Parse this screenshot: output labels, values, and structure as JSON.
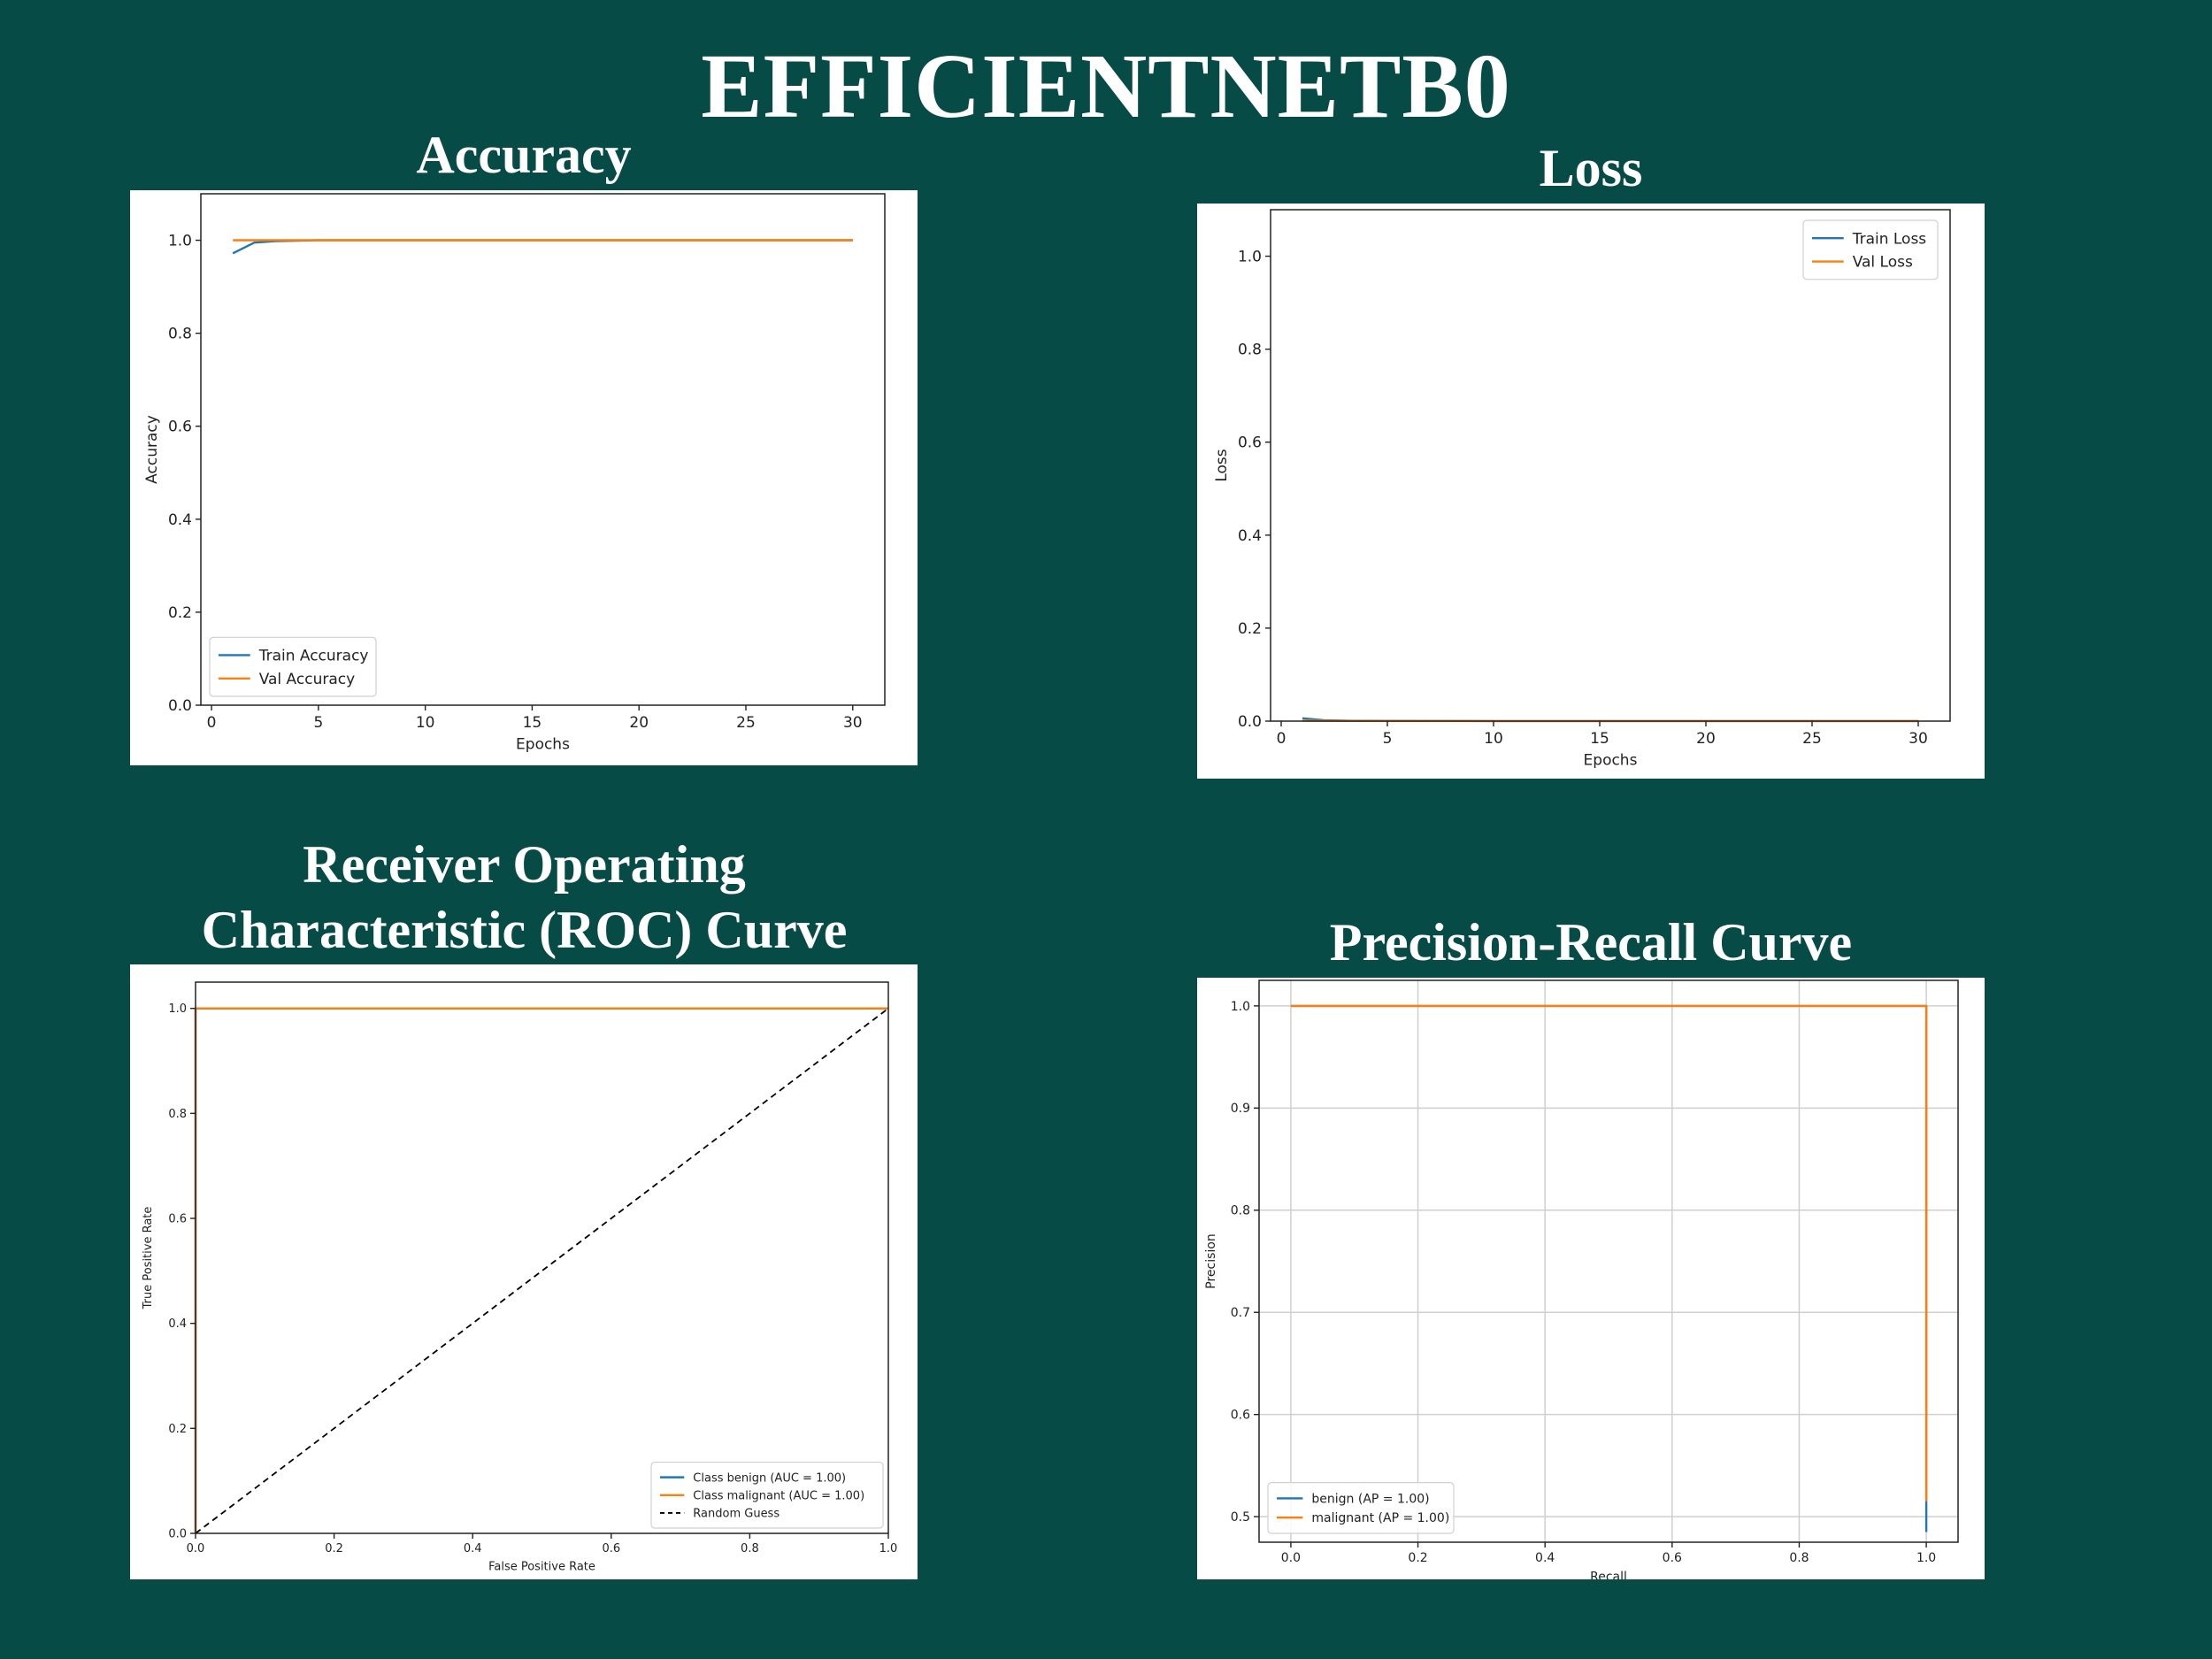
{
  "page": {
    "title": "EFFICIENTNETB0"
  },
  "chart_data": [
    {
      "id": "accuracy",
      "type": "line",
      "title": "Accuracy",
      "xlabel": "Epochs",
      "ylabel": "Accuracy",
      "xlim": [
        -0.5,
        31.5
      ],
      "ylim": [
        0,
        1.1
      ],
      "xticks": [
        0,
        5,
        10,
        15,
        20,
        25,
        30
      ],
      "xtick_labels": [
        "0",
        "5",
        "10",
        "15",
        "20",
        "25",
        "30"
      ],
      "yticks": [
        0.0,
        0.2,
        0.4,
        0.6,
        0.8,
        1.0
      ],
      "ytick_labels": [
        "0.0",
        "0.2",
        "0.4",
        "0.6",
        "0.8",
        "1.0"
      ],
      "grid": false,
      "legend_position": "lower-left",
      "series": [
        {
          "name": "Train Accuracy",
          "color": "#1f77b4",
          "x": [
            1,
            2,
            3,
            4,
            5,
            10,
            15,
            20,
            25,
            30
          ],
          "y": [
            0.972,
            0.995,
            0.998,
            0.999,
            1.0,
            1.0,
            1.0,
            1.0,
            1.0,
            1.0
          ]
        },
        {
          "name": "Val Accuracy",
          "color": "#ff7f0e",
          "x": [
            1,
            2,
            3,
            5,
            10,
            15,
            20,
            25,
            30
          ],
          "y": [
            1.0,
            1.0,
            1.0,
            1.0,
            1.0,
            1.0,
            1.0,
            1.0,
            1.0
          ]
        }
      ]
    },
    {
      "id": "loss",
      "type": "line",
      "title": "Loss",
      "xlabel": "Epochs",
      "ylabel": "Loss",
      "xlim": [
        -0.5,
        31.5
      ],
      "ylim": [
        0,
        1.1
      ],
      "xticks": [
        0,
        5,
        10,
        15,
        20,
        25,
        30
      ],
      "xtick_labels": [
        "0",
        "5",
        "10",
        "15",
        "20",
        "25",
        "30"
      ],
      "yticks": [
        0.0,
        0.2,
        0.4,
        0.6,
        0.8,
        1.0
      ],
      "ytick_labels": [
        "0.0",
        "0.2",
        "0.4",
        "0.6",
        "0.8",
        "1.0"
      ],
      "grid": false,
      "legend_position": "top-right",
      "series": [
        {
          "name": "Train Loss",
          "color": "#1f77b4",
          "x": [
            1,
            2,
            3,
            5,
            10,
            15,
            20,
            25,
            30
          ],
          "y": [
            0.006,
            0.002,
            0.001,
            0.0005,
            0.0002,
            0.0001,
            0.0001,
            0.0001,
            0.0001
          ]
        },
        {
          "name": "Val Loss",
          "color": "#ff7f0e",
          "x": [
            1,
            2,
            3,
            5,
            10,
            15,
            20,
            25,
            30
          ],
          "y": [
            0.001,
            0.0005,
            0.0003,
            0.0002,
            0.0001,
            0.0001,
            0.0001,
            0.0001,
            0.0001
          ]
        }
      ]
    },
    {
      "id": "roc",
      "type": "line",
      "title": "Receiver Operating Characteristic (ROC) Curve",
      "xlabel": "False Positive Rate",
      "ylabel": "True Positive Rate",
      "xlim": [
        0,
        1
      ],
      "ylim": [
        0,
        1.05
      ],
      "xticks": [
        0.0,
        0.2,
        0.4,
        0.6,
        0.8,
        1.0
      ],
      "xtick_labels": [
        "0.0",
        "0.2",
        "0.4",
        "0.6",
        "0.8",
        "1.0"
      ],
      "yticks": [
        0.0,
        0.2,
        0.4,
        0.6,
        0.8,
        1.0
      ],
      "ytick_labels": [
        "0.0",
        "0.2",
        "0.4",
        "0.6",
        "0.8",
        "1.0"
      ],
      "grid": false,
      "legend_position": "lower-right",
      "series": [
        {
          "name": "Class benign (AUC = 1.00)",
          "color": "#1f77b4",
          "x": [
            0,
            0,
            1
          ],
          "y": [
            0,
            1,
            1
          ]
        },
        {
          "name": "Class malignant (AUC = 1.00)",
          "color": "#ff7f0e",
          "x": [
            0,
            0,
            1
          ],
          "y": [
            0,
            1,
            1
          ]
        },
        {
          "name": "Random Guess",
          "color": "#000000",
          "dashed": true,
          "x": [
            0,
            1
          ],
          "y": [
            0,
            1
          ]
        }
      ]
    },
    {
      "id": "pr",
      "type": "line",
      "title": "Precision-Recall Curve",
      "xlabel": "Recall",
      "ylabel": "Precision",
      "xlim": [
        -0.05,
        1.05
      ],
      "ylim": [
        0.475,
        1.025
      ],
      "xticks": [
        0.0,
        0.2,
        0.4,
        0.6,
        0.8,
        1.0
      ],
      "xtick_labels": [
        "0.0",
        "0.2",
        "0.4",
        "0.6",
        "0.8",
        "1.0"
      ],
      "yticks": [
        0.5,
        0.6,
        0.7,
        0.8,
        0.9,
        1.0
      ],
      "ytick_labels": [
        "0.5",
        "0.6",
        "0.7",
        "0.8",
        "0.9",
        "1.0"
      ],
      "grid": true,
      "legend_position": "lower-left",
      "series": [
        {
          "name": "benign (AP = 1.00)",
          "color": "#1f77b4",
          "x": [
            0,
            1,
            1
          ],
          "y": [
            1,
            1,
            0.485
          ]
        },
        {
          "name": "malignant (AP = 1.00)",
          "color": "#ff7f0e",
          "x": [
            0,
            1,
            1
          ],
          "y": [
            1,
            1,
            0.515
          ]
        }
      ]
    }
  ]
}
